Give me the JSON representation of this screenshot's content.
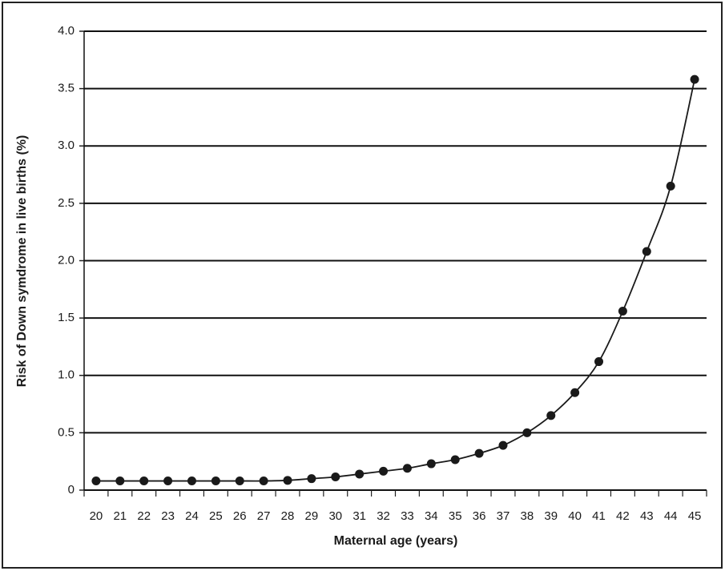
{
  "chart_data": {
    "type": "line",
    "x_label": "Maternal age (years)",
    "y_label": "Risk of Down symdrome in live births (%)",
    "categories": [
      "20",
      "21",
      "22",
      "23",
      "24",
      "25",
      "26",
      "27",
      "28",
      "29",
      "30",
      "31",
      "32",
      "33",
      "34",
      "35",
      "36",
      "37",
      "38",
      "39",
      "40",
      "41",
      "42",
      "43",
      "44",
      "45"
    ],
    "series": [
      {
        "color": "#1a1a1a",
        "values": [
          0.08,
          0.08,
          0.08,
          0.08,
          0.08,
          0.08,
          0.08,
          0.08,
          0.085,
          0.1,
          0.115,
          0.14,
          0.165,
          0.19,
          0.23,
          0.265,
          0.32,
          0.39,
          0.5,
          0.65,
          0.85,
          1.12,
          1.56,
          2.08,
          2.65,
          3.58
        ]
      }
    ],
    "ylim": [
      0,
      4
    ],
    "yticks": [
      0,
      0.5,
      {
        "value": 1,
        "label": "1.0"
      },
      1.5,
      {
        "value": 2,
        "label": "2.0"
      },
      2.5,
      {
        "value": 3,
        "label": "3.0"
      },
      3.5,
      {
        "value": 4,
        "label": "4.0"
      }
    ],
    "grid": true
  }
}
